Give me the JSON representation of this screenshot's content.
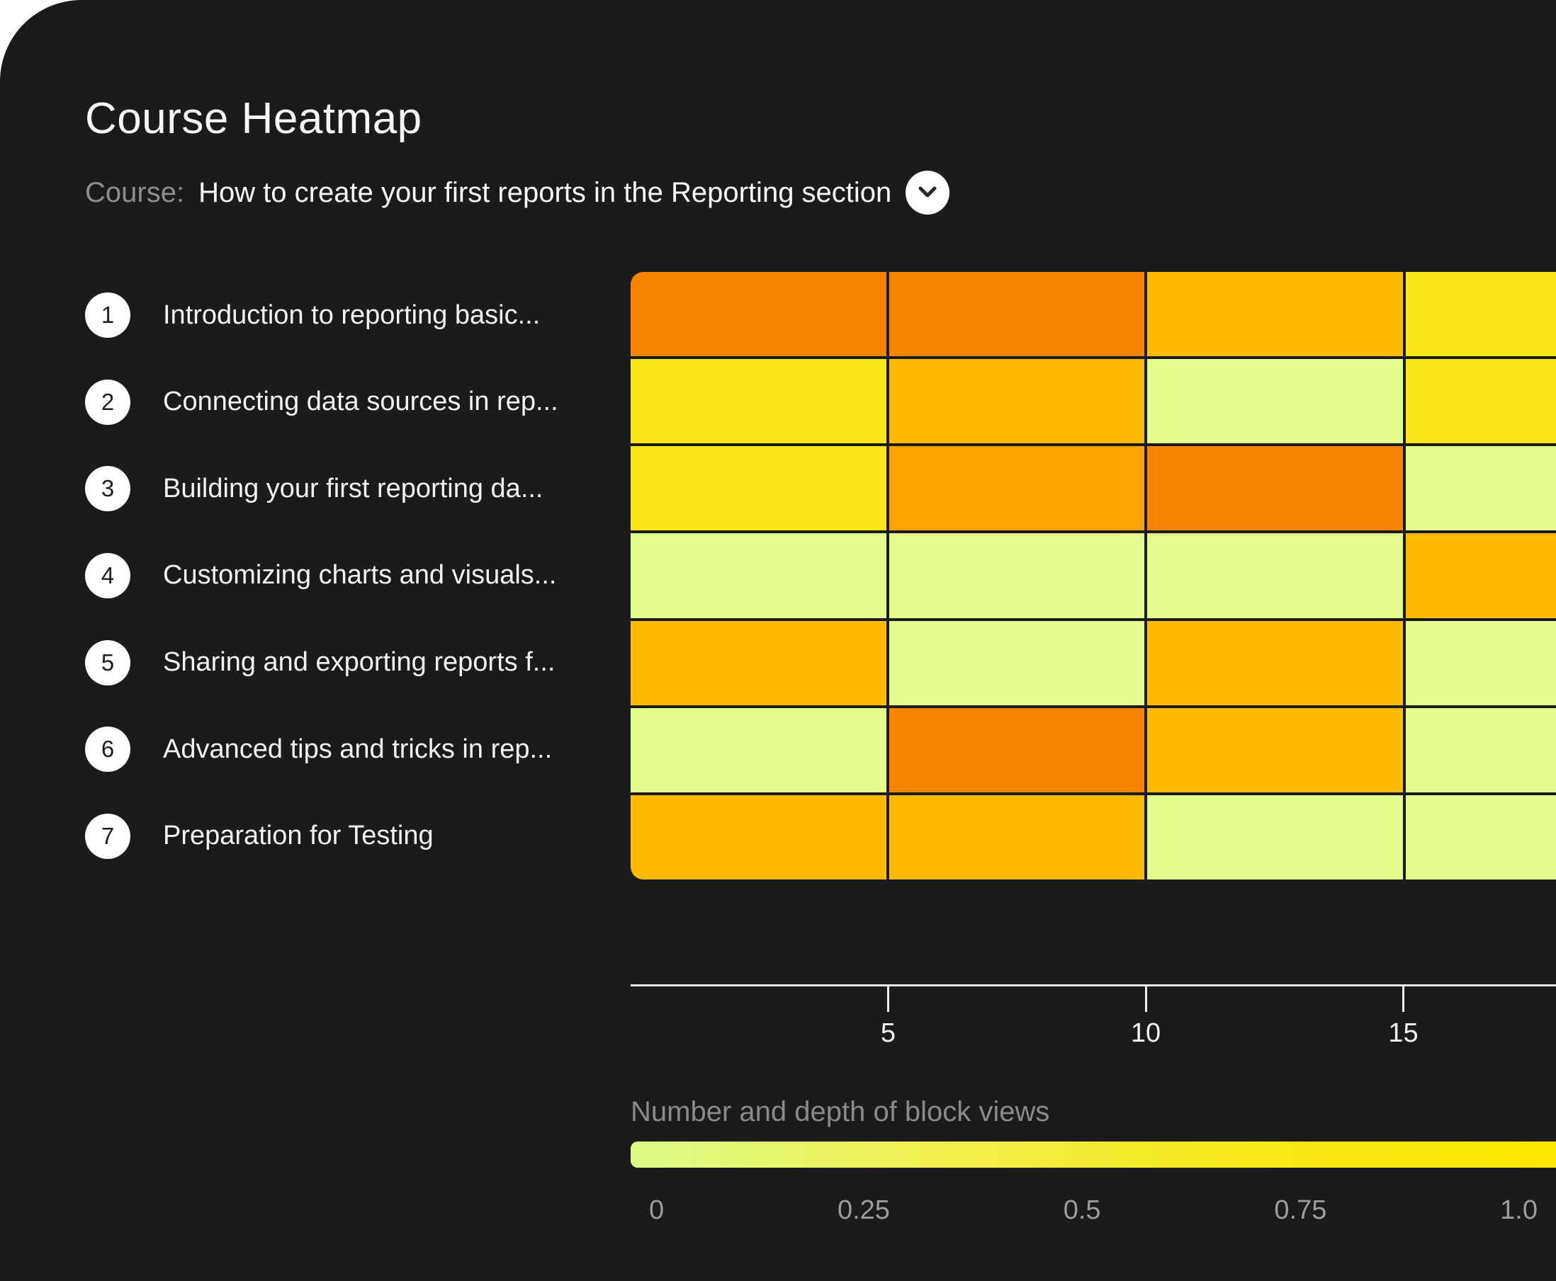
{
  "header": {
    "title": "Course Heatmap",
    "course_label": "Course:",
    "course_name": "How to create your first reports in the Reporting section"
  },
  "lessons": [
    {
      "num": "1",
      "label": "Introduction to reporting basic..."
    },
    {
      "num": "2",
      "label": "Connecting data sources in rep..."
    },
    {
      "num": "3",
      "label": "Building your first reporting da..."
    },
    {
      "num": "4",
      "label": "Customizing charts and visuals..."
    },
    {
      "num": "5",
      "label": "Sharing and exporting reports f..."
    },
    {
      "num": "6",
      "label": "Advanced tips and tricks in rep..."
    },
    {
      "num": "7",
      "label": "Preparation for Testing"
    }
  ],
  "chart_data": {
    "type": "heatmap",
    "title": "Course Heatmap",
    "rows": [
      "Introduction to reporting basic...",
      "Connecting data sources in rep...",
      "Building your first reporting da...",
      "Customizing charts and visuals...",
      "Sharing and exporting reports f...",
      "Advanced tips and tricks in rep...",
      "Preparation for Testing"
    ],
    "x_axis": {
      "ticks": [
        5,
        10,
        15
      ],
      "units_per_column": 5,
      "visible_columns": 4,
      "range_visible": [
        0,
        18
      ]
    },
    "cell_colors": [
      [
        "#F88500",
        "#F88500",
        "#FEBB02",
        "#FAE71A"
      ],
      [
        "#FAE71A",
        "#FEBB02",
        "#E4FB8D",
        "#FAE71A"
      ],
      [
        "#FAE71A",
        "#FDA401",
        "#F88500",
        "#E4FB8D"
      ],
      [
        "#E4FB8D",
        "#E4FB8D",
        "#E4FB8D",
        "#FEBB02"
      ],
      [
        "#FEBB02",
        "#E4FB8D",
        "#FEBB02",
        "#E4FB8D"
      ],
      [
        "#E4FB8D",
        "#F88500",
        "#FEBB02",
        "#E4FB8D"
      ],
      [
        "#FEBB02",
        "#FEBB02",
        "#E4FB8D",
        "#E4FB8D"
      ]
    ],
    "cell_intensity_estimate": [
      [
        1.0,
        1.0,
        0.75,
        0.5
      ],
      [
        0.5,
        0.75,
        0.15,
        0.5
      ],
      [
        0.5,
        0.85,
        1.0,
        0.15
      ],
      [
        0.15,
        0.15,
        0.15,
        0.75
      ],
      [
        0.75,
        0.15,
        0.75,
        0.15
      ],
      [
        0.15,
        1.0,
        0.75,
        0.15
      ],
      [
        0.75,
        0.75,
        0.15,
        0.15
      ]
    ],
    "legend": {
      "title": "Number and depth of block views",
      "labels": [
        "0",
        "0.25",
        "0.5",
        "0.75",
        "1.0"
      ],
      "gradient_stops": [
        "#DCFB85",
        "#EFF155",
        "#F8EA20",
        "#FDE701"
      ],
      "position": "bottom"
    },
    "grid": "dark gaps between cells"
  },
  "colors": {
    "card_background": "#1B1B1B",
    "page_background": "#FFFFFF",
    "title_text": "#F7F7F7",
    "muted_text": "#8A8A8A",
    "axis_line": "#E9E9E9",
    "tick_label": "#F5F5F5",
    "badge_background": "#FFFFFF",
    "badge_text": "#1F1F1F"
  },
  "icons": {
    "chevron_down": "chevron-down"
  }
}
